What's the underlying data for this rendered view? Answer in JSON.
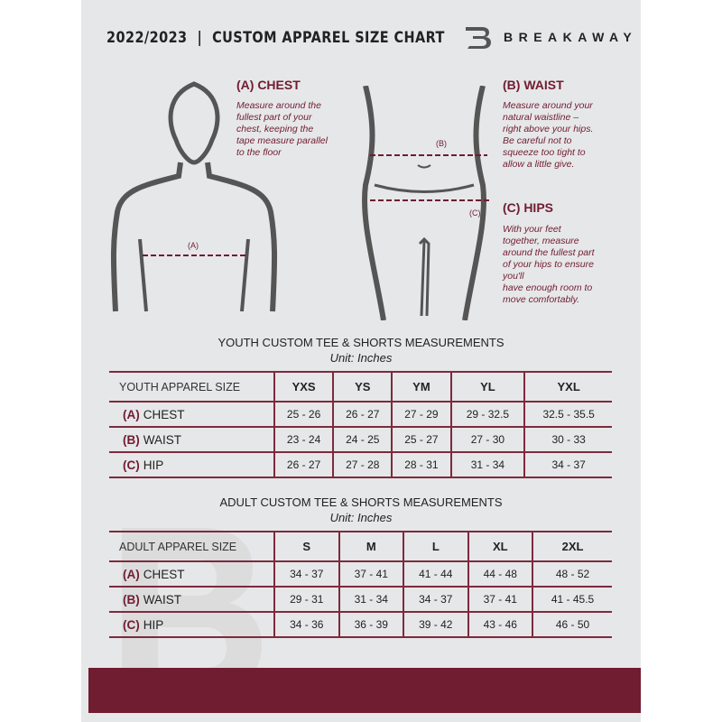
{
  "header": {
    "title": "2022/2023  |  CUSTOM APPAREL SIZE CHART",
    "brand": "BREAKAWAY",
    "logo_letter": "B"
  },
  "sections": {
    "chest": {
      "title": "(A) CHEST",
      "text": "Measure around the\nfullest part of your\nchest, keeping the\ntape measure parallel\nto the floor",
      "marker": "(A)"
    },
    "waist": {
      "title": "(B) WAIST",
      "text": "Measure around your\nnatural waistline –\nright above your hips.\nBe careful not to\nsqueeze too tight to\nallow a little give.",
      "marker": "(B)"
    },
    "hips": {
      "title": "(C) HIPS",
      "text": "With your feet\ntogether, measure\naround the fullest part\nof your hips to ensure\nyou'll\nhave enough room to\nmove comfortably.",
      "marker": "(C)"
    }
  },
  "youth": {
    "title": "YOUTH CUSTOM TEE & SHORTS MEASUREMENTS",
    "unit": "Unit: Inches",
    "header": "YOUTH APPAREL SIZE",
    "sizes": [
      "YXS",
      "YS",
      "YM",
      "YL",
      "YXL"
    ],
    "rows": [
      {
        "code": "(A)",
        "label": "CHEST",
        "values": [
          "25 - 26",
          "26 - 27",
          "27 - 29",
          "29 - 32.5",
          "32.5 - 35.5"
        ]
      },
      {
        "code": "(B)",
        "label": "WAIST",
        "values": [
          "23 - 24",
          "24 - 25",
          "25 - 27",
          "27 - 30",
          "30 - 33"
        ]
      },
      {
        "code": "(C)",
        "label": "HIP",
        "values": [
          "26 - 27",
          "27 - 28",
          "28 - 31",
          "31 - 34",
          "34 - 37"
        ]
      }
    ]
  },
  "adult": {
    "title": "ADULT CUSTOM TEE & SHORTS MEASUREMENTS",
    "unit": "Unit: Inches",
    "header": "ADULT APPAREL SIZE",
    "sizes": [
      "S",
      "M",
      "L",
      "XL",
      "2XL"
    ],
    "rows": [
      {
        "code": "(A)",
        "label": "CHEST",
        "values": [
          "34 - 37",
          "37 - 41",
          "41 - 44",
          "44 - 48",
          "48 - 52"
        ]
      },
      {
        "code": "(B)",
        "label": "WAIST",
        "values": [
          "29 - 31",
          "31 - 34",
          "34 - 37",
          "37 - 41",
          "41 - 45.5"
        ]
      },
      {
        "code": "(C)",
        "label": "HIP",
        "values": [
          "34 - 36",
          "36 - 39",
          "39 - 42",
          "43 - 46",
          "46 - 50"
        ]
      }
    ]
  },
  "colors": {
    "accent": "#701c31",
    "background": "#e6e7e8"
  }
}
